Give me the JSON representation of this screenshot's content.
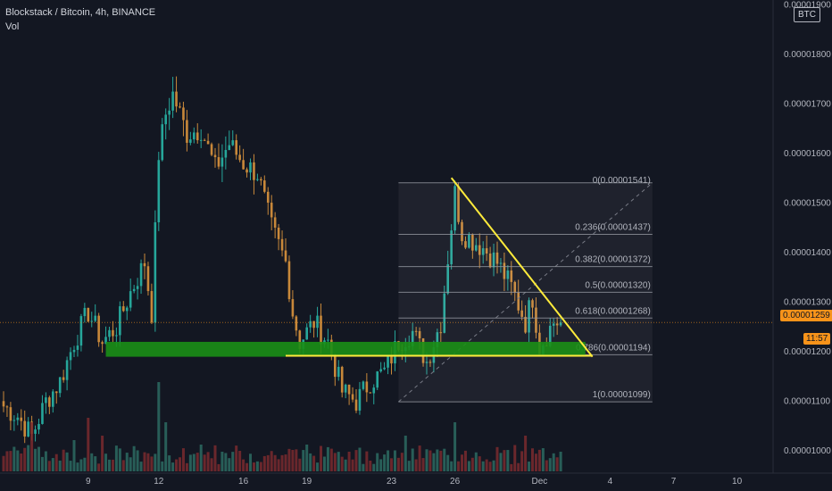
{
  "header": {
    "title": "Blockstack / Bitcoin, 4h, BINANCE",
    "indicator": "Vol"
  },
  "currency_button": "BTC",
  "price_badge": {
    "value": "0.00001259",
    "countdown": "11:57",
    "color": "#f7931a"
  },
  "colors": {
    "background": "#131722",
    "up": "#26a69a",
    "down": "#c8883a",
    "yellow": "#ffeb3b",
    "green_zone": "#1b8f16",
    "vol_up": "#2d6b62",
    "vol_down": "#7a2a2e"
  },
  "chart_data": {
    "type": "candlestick",
    "title": "Blockstack / Bitcoin, 4h, BINANCE",
    "xlabel": "",
    "ylabel": "",
    "ylim": [
      9.55e-06,
      1.91e-05
    ],
    "y_ticks": [
      "0.00001900",
      "0.00001800",
      "0.00001700",
      "0.00001600",
      "0.00001500",
      "0.00001400",
      "0.00001300",
      "0.00001200",
      "0.00001100",
      "0.00001000"
    ],
    "y_tick_values": [
      1.9e-05,
      1.8e-05,
      1.7e-05,
      1.6e-05,
      1.5e-05,
      1.4e-05,
      1.3e-05,
      1.2e-05,
      1.1e-05,
      1e-05
    ],
    "x_ticks": [
      "9",
      "12",
      "16",
      "19",
      "23",
      "26",
      "Dec",
      "4",
      "7",
      "10"
    ],
    "x_tick_index": [
      24,
      44,
      68,
      86,
      110,
      128,
      152,
      172,
      190,
      208
    ],
    "anchors": [
      [
        0,
        1.09
      ],
      [
        4,
        1.07
      ],
      [
        8,
        1.03
      ],
      [
        12,
        1.1
      ],
      [
        16,
        1.14
      ],
      [
        20,
        1.22
      ],
      [
        24,
        1.28
      ],
      [
        28,
        1.22
      ],
      [
        32,
        1.25
      ],
      [
        36,
        1.32
      ],
      [
        40,
        1.38
      ],
      [
        42,
        1.28
      ],
      [
        44,
        1.6
      ],
      [
        46,
        1.68
      ],
      [
        48,
        1.72
      ],
      [
        52,
        1.64
      ],
      [
        56,
        1.65
      ],
      [
        60,
        1.57
      ],
      [
        64,
        1.62
      ],
      [
        68,
        1.58
      ],
      [
        72,
        1.56
      ],
      [
        76,
        1.45
      ],
      [
        80,
        1.38
      ],
      [
        82,
        1.28
      ],
      [
        84,
        1.22
      ],
      [
        88,
        1.26
      ],
      [
        92,
        1.22
      ],
      [
        96,
        1.12
      ],
      [
        100,
        1.1
      ],
      [
        104,
        1.14
      ],
      [
        108,
        1.16
      ],
      [
        112,
        1.22
      ],
      [
        116,
        1.24
      ],
      [
        120,
        1.18
      ],
      [
        124,
        1.26
      ],
      [
        128,
        1.52
      ],
      [
        130,
        1.44
      ],
      [
        136,
        1.41
      ],
      [
        140,
        1.38
      ],
      [
        144,
        1.33
      ],
      [
        148,
        1.26
      ],
      [
        150,
        1.31
      ],
      [
        152,
        1.21
      ],
      [
        156,
        1.26
      ],
      [
        158,
        1.259
      ]
    ],
    "volume_spikes": [
      [
        8,
        0.55
      ],
      [
        20,
        0.35
      ],
      [
        24,
        0.6
      ],
      [
        28,
        0.4
      ],
      [
        44,
        1.0
      ],
      [
        46,
        0.55
      ],
      [
        56,
        0.3
      ],
      [
        62,
        0.22
      ],
      [
        86,
        0.3
      ],
      [
        98,
        0.22
      ],
      [
        114,
        0.4
      ],
      [
        128,
        0.55
      ],
      [
        148,
        0.4
      ],
      [
        158,
        0.22
      ]
    ],
    "last_price": 1.259e-05,
    "fibonacci": {
      "start_index": 112,
      "end_index": 184,
      "levels": [
        {
          "ratio": "0",
          "price": 1.541e-05,
          "label": "0(0.00001541)"
        },
        {
          "ratio": "0.236",
          "price": 1.437e-05,
          "label": "0.236(0.00001437)"
        },
        {
          "ratio": "0.382",
          "price": 1.372e-05,
          "label": "0.382(0.00001372)"
        },
        {
          "ratio": "0.5",
          "price": 1.32e-05,
          "label": "0.5(0.00001320)"
        },
        {
          "ratio": "0.618",
          "price": 1.268e-05,
          "label": "0.618(0.00001268)"
        },
        {
          "ratio": "0.786",
          "price": 1.194e-05,
          "label": "0.786(0.00001194)"
        },
        {
          "ratio": "1",
          "price": 1.099e-05,
          "label": "1(0.00001099)"
        }
      ]
    },
    "support_zone": {
      "start_index": 29,
      "end_index": 165,
      "top": 1.22e-05,
      "bottom": 1.19e-05
    },
    "support_line": {
      "start_index": 80,
      "end_index": 167,
      "price": 1.192e-05
    },
    "trendline": {
      "start": [
        127,
        1.551e-05
      ],
      "end": [
        167,
        1.19e-05
      ]
    }
  }
}
